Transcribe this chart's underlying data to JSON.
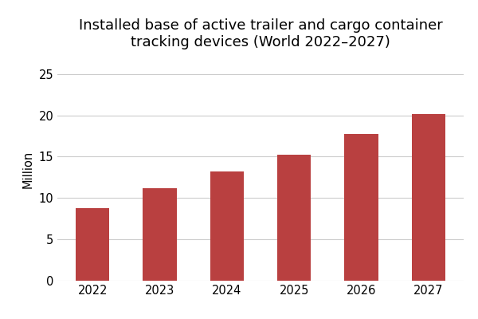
{
  "categories": [
    "2022",
    "2023",
    "2024",
    "2025",
    "2026",
    "2027"
  ],
  "values": [
    8.8,
    11.2,
    13.2,
    15.2,
    17.7,
    20.2
  ],
  "bar_color": "#b94040",
  "title_line1": "Installed base of active trailer and cargo container",
  "title_line2": "tracking devices (World 2022–2027)",
  "ylabel": "Million",
  "ylim": [
    0,
    27
  ],
  "yticks": [
    0,
    5,
    10,
    15,
    20,
    25
  ],
  "background_color": "#ffffff",
  "grid_color": "#cccccc",
  "title_fontsize": 13,
  "label_fontsize": 10.5,
  "tick_fontsize": 10.5,
  "bar_width": 0.5
}
